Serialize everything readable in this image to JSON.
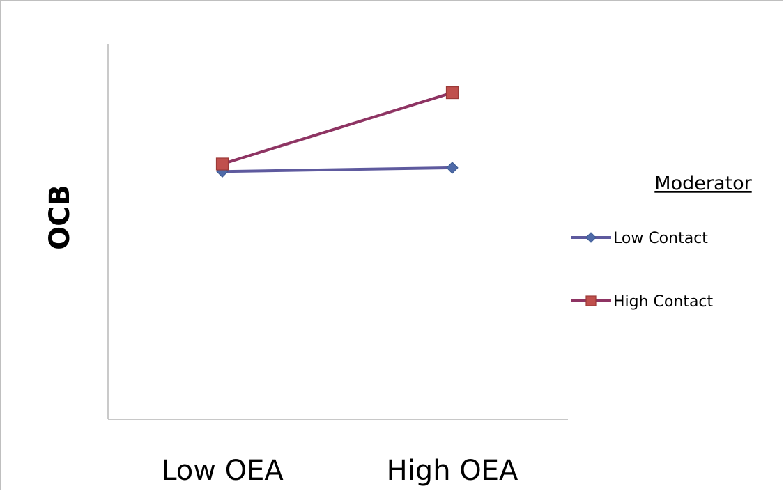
{
  "chart_data": {
    "type": "line",
    "title": "",
    "xlabel": "",
    "ylabel": "OCB",
    "categories": [
      "Low OEA",
      "High OEA"
    ],
    "ylim": [
      0,
      100
    ],
    "grid": false,
    "legend": {
      "title": "Moderator",
      "placement": "right"
    },
    "series": [
      {
        "name": "Low Contact",
        "values": [
          66,
          67
        ],
        "color": "#4F6AA8",
        "line_color": "#5E5A9E",
        "marker": "diamond"
      },
      {
        "name": "High Contact",
        "values": [
          68,
          87
        ],
        "color": "#C0504D",
        "line_color": "#8E3463",
        "marker": "square"
      }
    ]
  }
}
